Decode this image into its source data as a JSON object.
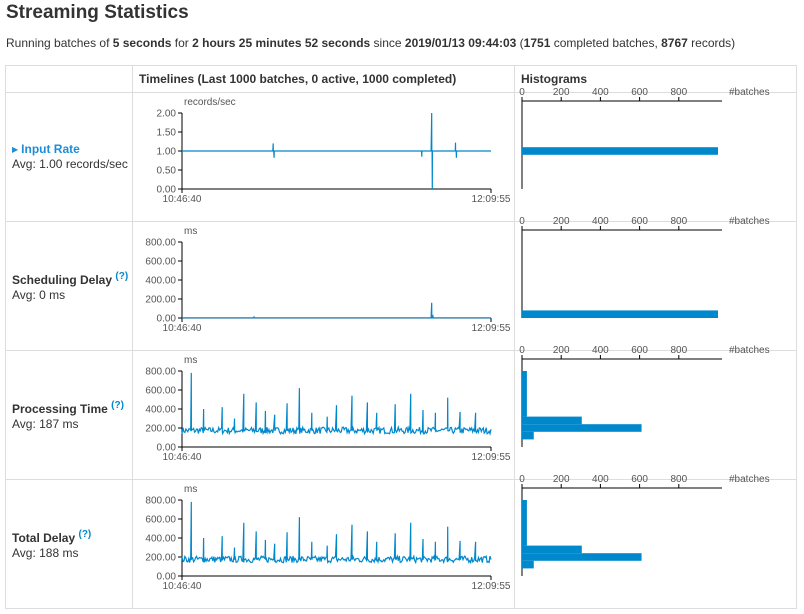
{
  "page": {
    "title": "Streaming Statistics",
    "summary": {
      "t1": "Running batches of ",
      "interval": "5 seconds",
      "t2": " for ",
      "uptime": "2 hours 25 minutes 52 seconds",
      "t3": " since ",
      "start": "2019/01/13 09:44:03",
      "t4": " (",
      "completed": "1751",
      "t5": " completed batches, ",
      "records": "8767",
      "t6": " records)"
    }
  },
  "table": {
    "col_timelines": "Timelines (Last 1000 batches, 0 active, 1000 completed)",
    "col_histograms": "Histograms"
  },
  "colors": {
    "accent": "#0088cc",
    "link": "#1f8dd6"
  },
  "rows": [
    {
      "name": "Input Rate",
      "avg": "Avg: 1.00 records/sec",
      "help": "",
      "link": true,
      "unit": "records/sec",
      "yticks": [
        "2.00",
        "1.50",
        "1.00",
        "0.50",
        "0.00"
      ],
      "xstart": "10:46:40",
      "xend": "12:09:55",
      "hist_ticks": [
        "0",
        "200",
        "400",
        "600",
        "800"
      ],
      "hist_unit": "#batches"
    },
    {
      "name": "Scheduling Delay",
      "avg": "Avg: 0 ms",
      "help": "(?)",
      "link": false,
      "unit": "ms",
      "yticks": [
        "800.00",
        "600.00",
        "400.00",
        "200.00",
        "0.00"
      ],
      "xstart": "10:46:40",
      "xend": "12:09:55",
      "hist_ticks": [
        "0",
        "200",
        "400",
        "600",
        "800"
      ],
      "hist_unit": "#batches"
    },
    {
      "name": "Processing Time",
      "avg": "Avg: 187 ms",
      "help": "(?)",
      "link": false,
      "unit": "ms",
      "yticks": [
        "800.00",
        "600.00",
        "400.00",
        "200.00",
        "0.00"
      ],
      "xstart": "10:46:40",
      "xend": "12:09:55",
      "hist_ticks": [
        "0",
        "200",
        "400",
        "600",
        "800"
      ],
      "hist_unit": "#batches"
    },
    {
      "name": "Total Delay",
      "avg": "Avg: 188 ms",
      "help": "(?)",
      "link": false,
      "unit": "ms",
      "yticks": [
        "800.00",
        "600.00",
        "400.00",
        "200.00",
        "0.00"
      ],
      "xstart": "10:46:40",
      "xend": "12:09:55",
      "hist_ticks": [
        "0",
        "200",
        "400",
        "600",
        "800"
      ],
      "hist_unit": "#batches"
    }
  ],
  "chart_data": [
    {
      "type": "line",
      "ylabel": "records/sec",
      "ylim": [
        0,
        2
      ],
      "xlim": [
        "10:46:40",
        "12:09:55"
      ],
      "baseline": 1.0,
      "spikes": [
        [
          0.295,
          1.2
        ],
        [
          0.298,
          0.82
        ],
        [
          0.776,
          0.85
        ],
        [
          0.808,
          2.0
        ],
        [
          0.81,
          0.0
        ],
        [
          0.885,
          1.22
        ],
        [
          0.888,
          0.82
        ]
      ]
    },
    {
      "type": "line",
      "ylabel": "ms",
      "ylim": [
        0,
        800
      ],
      "xlim": [
        "10:46:40",
        "12:09:55"
      ],
      "baseline": 2,
      "spikes": [
        [
          0.233,
          10
        ],
        [
          0.808,
          160
        ],
        [
          0.812,
          20
        ]
      ]
    },
    {
      "type": "line",
      "ylabel": "ms",
      "ylim": [
        0,
        800
      ],
      "xlim": [
        "10:46:40",
        "12:09:55"
      ],
      "baseline": 170,
      "spikes": [
        [
          0.03,
          780
        ],
        [
          0.07,
          400
        ],
        [
          0.13,
          420
        ],
        [
          0.17,
          300
        ],
        [
          0.2,
          560
        ],
        [
          0.24,
          470
        ],
        [
          0.27,
          380
        ],
        [
          0.3,
          340
        ],
        [
          0.34,
          460
        ],
        [
          0.38,
          620
        ],
        [
          0.42,
          360
        ],
        [
          0.47,
          320
        ],
        [
          0.5,
          440
        ],
        [
          0.55,
          540
        ],
        [
          0.6,
          470
        ],
        [
          0.63,
          360
        ],
        [
          0.69,
          450
        ],
        [
          0.74,
          560
        ],
        [
          0.78,
          390
        ],
        [
          0.82,
          360
        ],
        [
          0.86,
          520
        ],
        [
          0.9,
          370
        ],
        [
          0.95,
          360
        ]
      ]
    },
    {
      "type": "line",
      "ylabel": "ms",
      "ylim": [
        0,
        800
      ],
      "xlim": [
        "10:46:40",
        "12:09:55"
      ],
      "baseline": 172,
      "spikes": [
        [
          0.03,
          780
        ],
        [
          0.07,
          400
        ],
        [
          0.13,
          420
        ],
        [
          0.17,
          300
        ],
        [
          0.2,
          560
        ],
        [
          0.24,
          470
        ],
        [
          0.27,
          380
        ],
        [
          0.3,
          340
        ],
        [
          0.34,
          460
        ],
        [
          0.38,
          620
        ],
        [
          0.42,
          360
        ],
        [
          0.47,
          320
        ],
        [
          0.5,
          440
        ],
        [
          0.55,
          540
        ],
        [
          0.6,
          470
        ],
        [
          0.63,
          360
        ],
        [
          0.69,
          450
        ],
        [
          0.74,
          560
        ],
        [
          0.78,
          390
        ],
        [
          0.82,
          360
        ],
        [
          0.86,
          520
        ],
        [
          0.9,
          370
        ],
        [
          0.95,
          360
        ]
      ]
    }
  ],
  "histograms": [
    {
      "xlim": [
        0,
        1000
      ],
      "bins": [
        {
          "lo": 0.9,
          "hi": 1.1,
          "count": 1000
        }
      ]
    },
    {
      "xlim": [
        0,
        1000
      ],
      "bins": [
        {
          "lo": 0,
          "hi": 80,
          "count": 1000
        }
      ]
    },
    {
      "xlim": [
        0,
        1000
      ],
      "bins": [
        {
          "lo": 0,
          "hi": 80,
          "count": 0
        },
        {
          "lo": 80,
          "hi": 160,
          "count": 60
        },
        {
          "lo": 160,
          "hi": 240,
          "count": 610
        },
        {
          "lo": 240,
          "hi": 320,
          "count": 305
        },
        {
          "lo": 320,
          "hi": 800,
          "count": 25
        }
      ]
    },
    {
      "xlim": [
        0,
        1000
      ],
      "bins": [
        {
          "lo": 0,
          "hi": 80,
          "count": 0
        },
        {
          "lo": 80,
          "hi": 160,
          "count": 60
        },
        {
          "lo": 160,
          "hi": 240,
          "count": 610
        },
        {
          "lo": 240,
          "hi": 320,
          "count": 305
        },
        {
          "lo": 320,
          "hi": 800,
          "count": 25
        }
      ]
    }
  ]
}
